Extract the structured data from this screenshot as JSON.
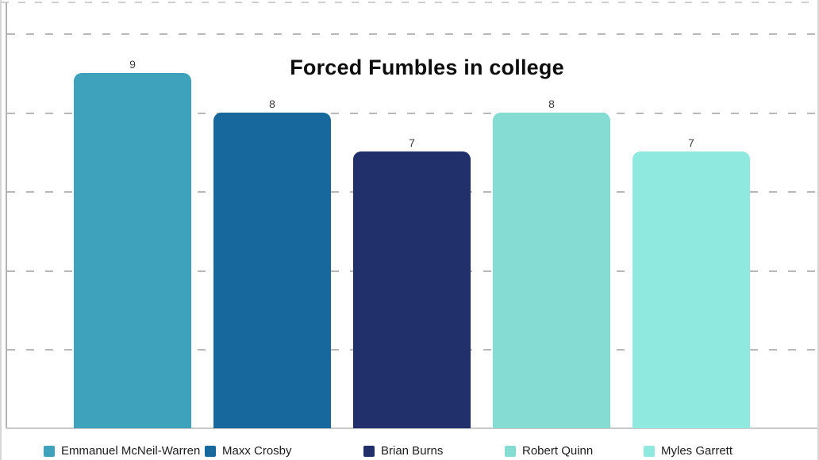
{
  "chart_data": {
    "type": "bar",
    "title": "Forced Fumbles in college",
    "categories": [
      "Emmanuel McNeil-Warren",
      "Maxx Crosby",
      "Brian Burns",
      "Robert Quinn",
      "Myles Garrett"
    ],
    "values": [
      9,
      8,
      7,
      8,
      7
    ],
    "value_labels": [
      "9",
      "8",
      "7",
      "8",
      "7"
    ],
    "bar_colors": [
      "#3fa2bc",
      "#17699d",
      "#21306b",
      "#85dcd3",
      "#8fe9df"
    ],
    "xlabel": "",
    "ylabel": "",
    "ylim": [
      0,
      10.8
    ],
    "gridline_values": [
      2,
      4,
      6,
      8,
      10
    ],
    "grid": "horizontal-dashed",
    "legend_position": "bottom",
    "legend_entries": [
      {
        "label": "Emmanuel McNeil-Warren",
        "color": "#3fa2bc"
      },
      {
        "label": "Maxx Crosby",
        "color": "#17699d"
      },
      {
        "label": "Brian Burns",
        "color": "#21306b"
      },
      {
        "label": "Robert Quinn",
        "color": "#85dcd3"
      },
      {
        "label": "Myles Garrett",
        "color": "#8fe9df"
      }
    ]
  },
  "colors": {
    "background": "#ffffff",
    "gridline": "#b8b8b8",
    "axis_line": "#b3b3b3",
    "title_text": "#0d0d0d",
    "value_label_text": "#3d3d3d",
    "legend_text": "#1c1c1c"
  }
}
